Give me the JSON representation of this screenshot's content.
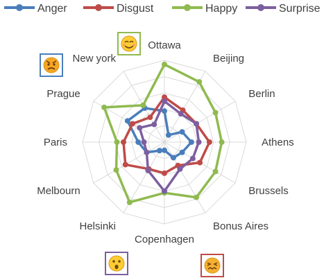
{
  "chart_data": {
    "type": "radar",
    "categories": [
      "Ottawa",
      "Beijing",
      "Berlin",
      "Athens",
      "Brussels",
      "Bonus Aires",
      "Copenhagen",
      "Helsinki",
      "Melbourn",
      "Paris",
      "Prague",
      "New york"
    ],
    "rlim": [
      0,
      1
    ],
    "grid": true,
    "legend_position": "top",
    "series": [
      {
        "name": "Anger",
        "color": "#4a7ebb",
        "values": [
          0.38,
          0.1,
          0.25,
          0.33,
          0.25,
          0.22,
          0.1,
          0.12,
          0.25,
          0.32,
          0.52,
          0.48
        ]
      },
      {
        "name": "Disgust",
        "color": "#be4b48",
        "values": [
          0.55,
          0.45,
          0.45,
          0.55,
          0.5,
          0.33,
          0.38,
          0.38,
          0.55,
          0.5,
          0.45,
          0.35
        ]
      },
      {
        "name": "Happy",
        "color": "#8fba4f",
        "values": [
          0.95,
          0.85,
          0.72,
          0.7,
          0.72,
          0.78,
          0.62,
          0.85,
          0.68,
          0.58,
          0.85,
          0.52
        ]
      },
      {
        "name": "Surprise",
        "color": "#7d5fa0",
        "values": [
          0.5,
          0.4,
          0.45,
          0.42,
          0.4,
          0.38,
          0.6,
          0.4,
          0.25,
          0.25,
          0.35,
          0.25
        ]
      }
    ],
    "emoji_tags": [
      {
        "city": "Ottawa",
        "emoji": "smiling-face",
        "border_color": "#8fba4f"
      },
      {
        "city": "New york",
        "emoji": "angry-face",
        "border_color": "#4a7ebb"
      },
      {
        "city": "Copenhagen",
        "emoji": "surprised-face",
        "border_color": "#7d5fa0"
      },
      {
        "city": "Copenhagen",
        "emoji": "disgusted-face",
        "border_color": "#be4b48"
      }
    ]
  }
}
